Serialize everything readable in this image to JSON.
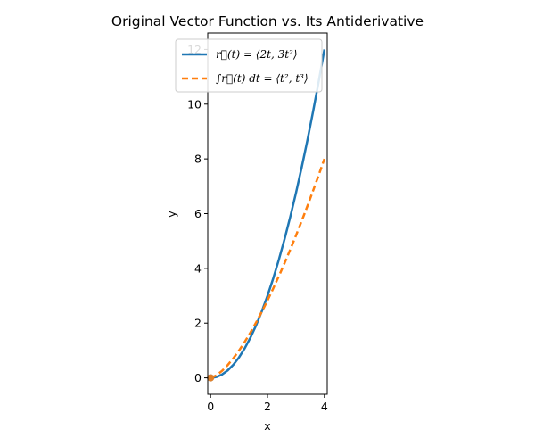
{
  "chart_data": {
    "type": "line",
    "title": "Original Vector Function vs. Its Antiderivative",
    "xlabel": "x",
    "ylabel": "y",
    "xlim": [
      -0.1,
      4.1
    ],
    "ylim": [
      -0.6,
      12.6
    ],
    "x_ticks": [
      0,
      2,
      4
    ],
    "y_ticks": [
      0,
      2,
      4,
      6,
      8,
      10,
      12
    ],
    "grid": false,
    "legend_position": "upper center",
    "series": [
      {
        "name": "r⃗(t) = ⟨2t, 3t²⟩",
        "color": "#1f77b4",
        "style": "solid",
        "x": [
          0,
          0.2,
          0.4,
          0.6,
          0.8,
          1.0,
          1.2,
          1.4,
          1.6,
          1.8,
          2.0,
          2.2,
          2.4,
          2.6,
          2.8,
          3.0,
          3.2,
          3.4,
          3.6,
          3.8,
          4.0
        ],
        "y": [
          0,
          0.03,
          0.12,
          0.27,
          0.48,
          0.75,
          1.08,
          1.47,
          1.92,
          2.43,
          3.0,
          3.63,
          4.32,
          5.07,
          5.88,
          6.75,
          7.68,
          8.67,
          9.72,
          10.83,
          12.0
        ]
      },
      {
        "name": "∫r⃗(t) dt = ⟨t², t³⟩",
        "color": "#ff7f0e",
        "style": "dashed",
        "x": [
          0,
          0.2,
          0.4,
          0.6,
          0.8,
          1.0,
          1.2,
          1.4,
          1.6,
          1.8,
          2.0,
          2.2,
          2.4,
          2.6,
          2.8,
          3.0,
          3.2,
          3.4,
          3.6,
          3.8,
          4.0
        ],
        "y": [
          0,
          0.089,
          0.253,
          0.465,
          0.716,
          1.0,
          1.315,
          1.657,
          2.024,
          2.415,
          2.828,
          3.263,
          3.718,
          4.192,
          4.685,
          5.196,
          5.724,
          6.269,
          6.831,
          7.408,
          8.0
        ]
      }
    ],
    "markers": [
      {
        "x": 0,
        "y": 0,
        "color": "#1f77b4"
      },
      {
        "x": 0,
        "y": 0,
        "color": "#ff7f0e"
      }
    ]
  }
}
